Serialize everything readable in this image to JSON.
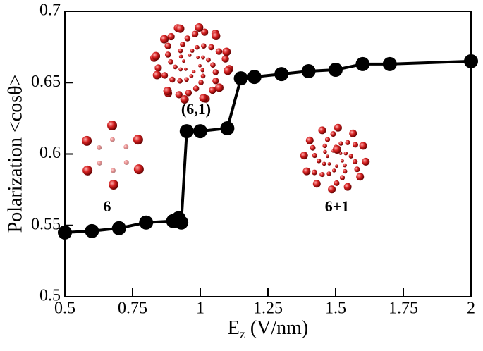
{
  "chart_data": {
    "type": "line",
    "x_label": [
      "E",
      "z",
      " (V/nm)"
    ],
    "y_label": "Polarization <cosθ>",
    "annotations": [
      "(6,1)",
      "6",
      "6+1"
    ],
    "series": [
      {
        "color": "#000000",
        "x": [
          0.5,
          0.6,
          0.7,
          0.8,
          0.9,
          0.92,
          0.93,
          0.95,
          1.0,
          1.1,
          1.15,
          1.2,
          1.3,
          1.4,
          1.5,
          1.6,
          1.7,
          2.0
        ],
        "values": [
          0.545,
          0.546,
          0.548,
          0.552,
          0.553,
          0.555,
          0.552,
          0.616,
          0.616,
          0.618,
          0.653,
          0.654,
          0.656,
          0.658,
          0.659,
          0.663,
          0.663,
          0.665
        ]
      }
    ],
    "xlim": [
      0.5,
      2
    ],
    "xticks": [
      0.5,
      0.75,
      1,
      1.25,
      1.5,
      1.75,
      2
    ],
    "ylim": [
      0.5,
      0.7
    ],
    "yticks": [
      0.5,
      0.55,
      0.6,
      0.65,
      0.7
    ]
  }
}
